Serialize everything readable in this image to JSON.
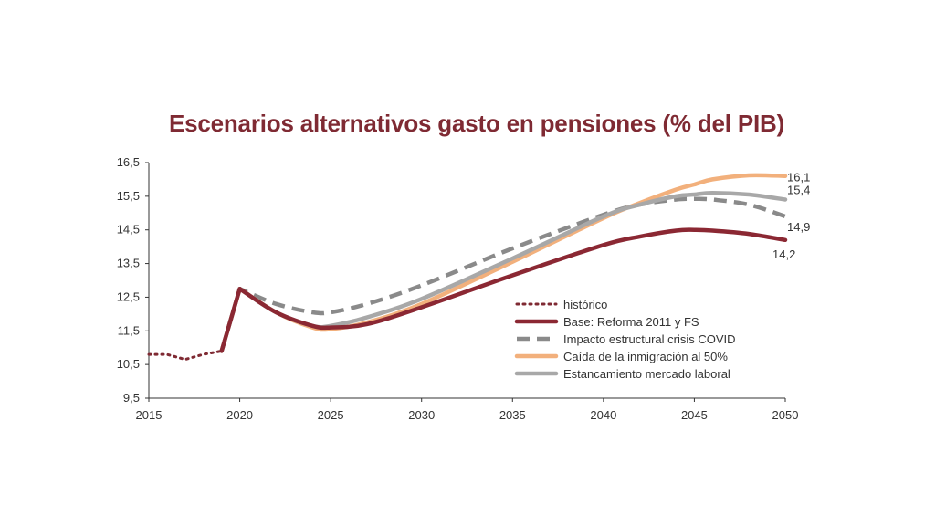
{
  "chart_data": {
    "type": "line",
    "title": "Escenarios alternativos gasto en pensiones (% del PIB)",
    "xlabel": "",
    "ylabel": "",
    "xlim": [
      2015,
      2050
    ],
    "ylim": [
      9.5,
      16.5
    ],
    "x_ticks": [
      "2015",
      "2020",
      "2025",
      "2030",
      "2035",
      "2040",
      "2045",
      "2050"
    ],
    "y_ticks": [
      "16,5",
      "15,5",
      "14,5",
      "13,5",
      "12,5",
      "11,5",
      "10,5",
      "9,5"
    ],
    "legend_position": "center-right",
    "series": [
      {
        "name": "histórico",
        "color": "#7f2a33",
        "style": "dotted",
        "x": [
          2015,
          2016,
          2017,
          2018,
          2019
        ],
        "values": [
          10.8,
          10.8,
          10.65,
          10.8,
          10.9
        ]
      },
      {
        "name": "Base: Reforma 2011 y FS",
        "color": "#8b2833",
        "style": "solid",
        "x": [
          2019,
          2020,
          2022,
          2024,
          2025,
          2027,
          2030,
          2035,
          2040,
          2042,
          2044,
          2045,
          2046,
          2048,
          2050
        ],
        "values": [
          10.9,
          12.75,
          12.05,
          11.65,
          11.6,
          11.7,
          12.2,
          13.15,
          14.05,
          14.3,
          14.48,
          14.5,
          14.48,
          14.38,
          14.2
        ],
        "end_label": "14,2"
      },
      {
        "name": "Impacto estructural crisis COVID",
        "color": "#8a8a8a",
        "style": "dashed",
        "x": [
          2019,
          2020,
          2022,
          2024,
          2025,
          2027,
          2030,
          2035,
          2040,
          2042,
          2044,
          2045,
          2046,
          2048,
          2050
        ],
        "values": [
          10.9,
          12.75,
          12.3,
          12.05,
          12.05,
          12.3,
          12.85,
          13.95,
          14.95,
          15.25,
          15.4,
          15.42,
          15.4,
          15.25,
          14.9
        ],
        "end_label": "14,9"
      },
      {
        "name": "Caída de la inmigración al 50%",
        "color": "#f2b07c",
        "style": "solid",
        "x": [
          2019,
          2020,
          2022,
          2024,
          2025,
          2027,
          2030,
          2035,
          2040,
          2042,
          2044,
          2045,
          2046,
          2048,
          2050
        ],
        "values": [
          10.9,
          12.75,
          12.05,
          11.6,
          11.55,
          11.75,
          12.3,
          13.55,
          14.85,
          15.3,
          15.7,
          15.85,
          16.0,
          16.12,
          16.1
        ],
        "end_label": "16,1"
      },
      {
        "name": "Estancamiento mercado laboral",
        "color": "#a8a8a8",
        "style": "solid",
        "x": [
          2019,
          2020,
          2022,
          2024,
          2025,
          2027,
          2030,
          2035,
          2040,
          2042,
          2044,
          2045,
          2046,
          2048,
          2050
        ],
        "values": [
          10.9,
          12.75,
          12.05,
          11.65,
          11.65,
          11.9,
          12.45,
          13.65,
          14.9,
          15.25,
          15.5,
          15.55,
          15.6,
          15.55,
          15.4
        ],
        "end_label": "15,4"
      }
    ]
  }
}
